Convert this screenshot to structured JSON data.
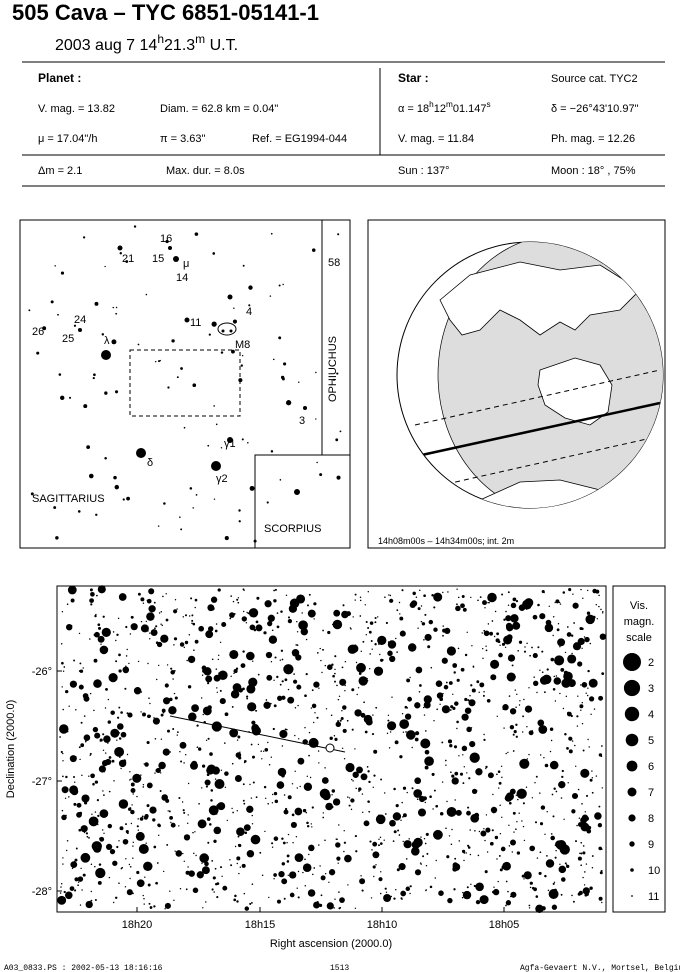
{
  "header": {
    "title": "505 Cava  –  TYC 6851-05141-1",
    "subtitle": [
      "2003 aug  7  14",
      "h",
      "21.3",
      "m",
      " U.T."
    ]
  },
  "info": {
    "planet_label": "Planet :",
    "star_label": "Star :",
    "source": "Source cat.  TYC2",
    "vmag_planet": "V. mag. = 13.82",
    "diam": "Diam. = 62.8 km = 0.04\"",
    "alpha": [
      "α = 18",
      "h",
      "12",
      "m",
      "01.147",
      "s"
    ],
    "delta": "δ = −26°43'10.97\"",
    "mu": "μ =  17.04\"/h",
    "pi": "π =  3.63\"",
    "ref": "Ref. = EG1994-044",
    "vmag_star": "V. mag. = 11.84",
    "phmag": "Ph. mag. = 12.26",
    "dm": "Δm = 2.1",
    "maxdur": "Max. dur. = 8.0s",
    "sun": "Sun : 137°",
    "moon": "Moon :  18° , 75%"
  },
  "finder": {
    "labels": [
      "16",
      "15",
      "14",
      "21",
      "24",
      "25",
      "26",
      "58",
      "11",
      "4",
      "3",
      "μ",
      "λ",
      "δ",
      "γ1",
      "γ2",
      "M8",
      "SAGITTARIUS",
      "SCORPIUS",
      "OPHIUCHUS"
    ]
  },
  "globe": {
    "caption": "14h08m00s – 14h34m00s; int.  2m"
  },
  "sky": {
    "y_label": "Declination (2000.0)",
    "x_label": "Right ascension (2000.0)",
    "yticks": [
      "-26°",
      "-27°",
      "-28°"
    ],
    "xticks": [
      "18h20",
      "18h15",
      "18h10",
      "18h05"
    ]
  },
  "scale": {
    "title": [
      "Vis.",
      "magn.",
      "scale"
    ],
    "values": [
      2,
      3,
      4,
      5,
      6,
      7,
      8,
      9,
      10,
      11
    ]
  },
  "footer": {
    "file": "A03_0833.PS : 2002-05-13 18:16:16",
    "page": "1513",
    "company": "Agfa-Gevaert N.V., Mortsel, Belgium"
  }
}
